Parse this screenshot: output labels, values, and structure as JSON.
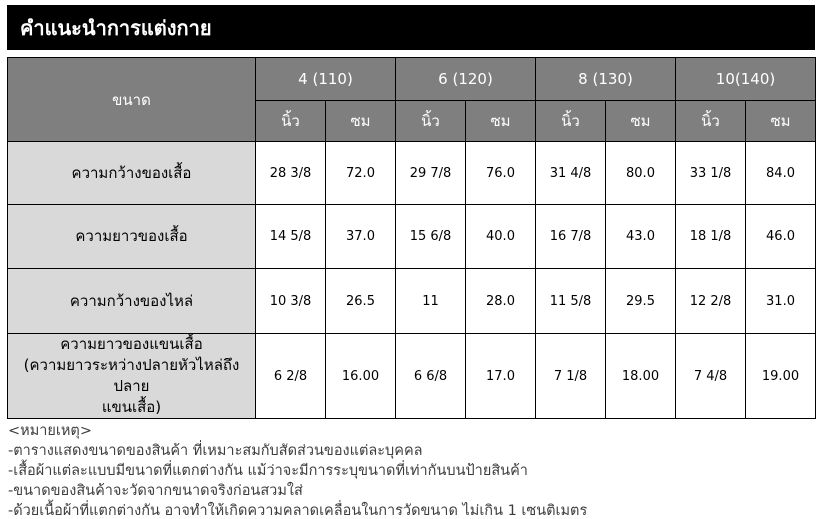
{
  "title": "คำแนะนำการแต่งกาย",
  "table": {
    "corner_label": "ขนาด",
    "sizes": [
      "4 (110)",
      "6 (120)",
      "8 (130)",
      "10(140)"
    ],
    "units": {
      "inch": "นิ้ว",
      "cm": "ซม"
    },
    "rows": [
      {
        "label_lines": [
          "ความกว้างของเสื้อ"
        ],
        "values": [
          "28 3/8",
          "72.0",
          "29 7/8",
          "76.0",
          "31 4/8",
          "80.0",
          "33 1/8",
          "84.0"
        ]
      },
      {
        "label_lines": [
          "ความยาวของเสื้อ"
        ],
        "values": [
          "14 5/8",
          "37.0",
          "15 6/8",
          "40.0",
          "16 7/8",
          "43.0",
          "18 1/8",
          "46.0"
        ]
      },
      {
        "label_lines": [
          "ความกว้างของไหล่"
        ],
        "values": [
          "10 3/8",
          "26.5",
          "11",
          "28.0",
          "11 5/8",
          "29.5",
          "12 2/8",
          "31.0"
        ]
      },
      {
        "label_lines": [
          "ความยาวของแขนเสื้อ",
          "(ความยาวระหว่างปลายหัวไหล่ถึงปลาย",
          "แขนเสื้อ)"
        ],
        "values": [
          "6 2/8",
          "16.00",
          "6 6/8",
          "17.0",
          "7 1/8",
          "18.00",
          "7 4/8",
          "19.00"
        ]
      }
    ]
  },
  "notes": {
    "heading": "<หมายเหตุ>",
    "items": [
      "-ตารางแสดงขนาดของสินค้า ที่เหมาะสมกับสัดส่วนของแต่ละบุคคล",
      "-เสื้อผ้าแต่ละแบบมีขนาดที่แตกต่างกัน แม้ว่าจะมีการระบุขนาดที่เท่ากันบนป้ายสินค้า",
      "-ขนาดของสินค้าจะวัดจากขนาดจริงก่อนสวมใส่",
      "-ด้วยเนื้อผ้าที่แตกต่างกัน อาจทำให้เกิดความคลาดเคลื่อนในการวัดขนาด ไม่เกิน 1 เซนติเมตร"
    ]
  },
  "colors": {
    "title_bar_bg": "#000000",
    "title_text": "#ffffff",
    "header_bg": "#7f7f7f",
    "header_text": "#ffffff",
    "label_cell_bg": "#d9d9d9",
    "cell_bg": "#ffffff",
    "border": "#000000",
    "notes_text": "#3d3d3d"
  }
}
